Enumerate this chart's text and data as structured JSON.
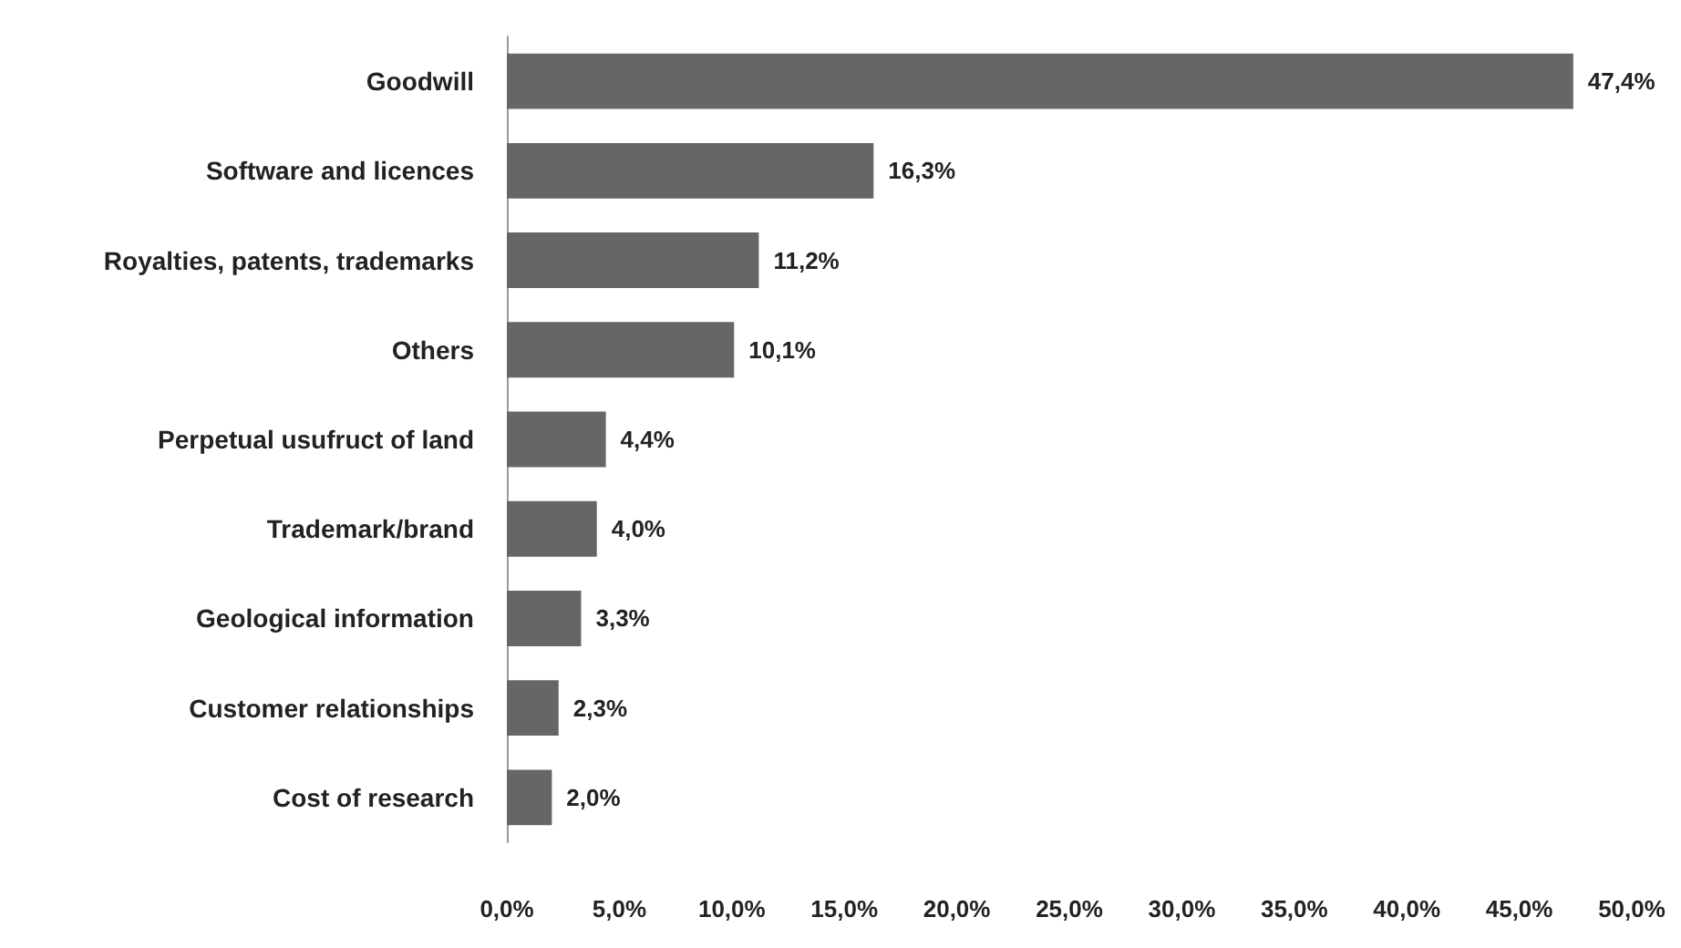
{
  "chart_data": {
    "type": "bar",
    "orientation": "horizontal",
    "categories": [
      "Goodwill",
      "Software and licences",
      "Royalties, patents, trademarks",
      "Others",
      "Perpetual usufruct of land",
      "Trademark/brand",
      "Geological information",
      "Customer relationships",
      "Cost of research"
    ],
    "values": [
      47.4,
      16.3,
      11.2,
      10.1,
      4.4,
      4.0,
      3.3,
      2.3,
      2.0
    ],
    "value_labels": [
      "47,4%",
      "16,3%",
      "11,2%",
      "10,1%",
      "4,4%",
      "4,0%",
      "3,3%",
      "2,3%",
      "2,0%"
    ],
    "color": "#666666",
    "xlim": [
      0,
      50
    ],
    "xticks": [
      {
        "value": 0,
        "label": "0,0%"
      },
      {
        "value": 5,
        "label": "5,0%"
      },
      {
        "value": 10,
        "label": "10,0%"
      },
      {
        "value": 15,
        "label": "15,0%"
      },
      {
        "value": 20,
        "label": "20,0%"
      },
      {
        "value": 25,
        "label": "25,0%"
      },
      {
        "value": 30,
        "label": "30,0%"
      },
      {
        "value": 35,
        "label": "35,0%"
      },
      {
        "value": 40,
        "label": "40,0%"
      },
      {
        "value": 45,
        "label": "45,0%"
      },
      {
        "value": 50,
        "label": "50,0%"
      }
    ],
    "grid": false
  }
}
